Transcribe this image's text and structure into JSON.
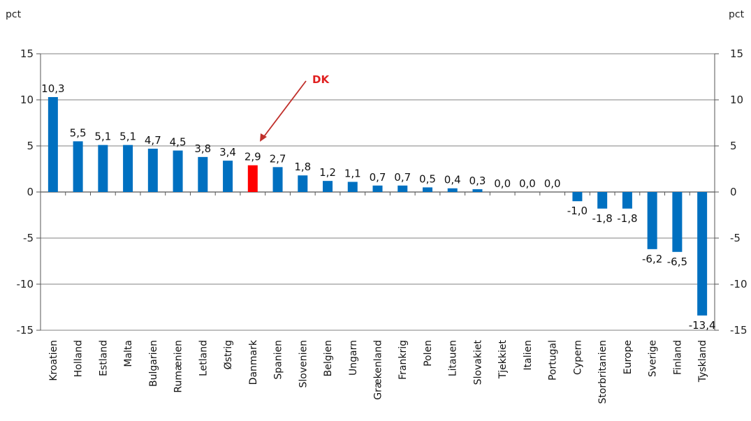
{
  "chart_data": {
    "type": "bar",
    "title": "",
    "xlabel": "",
    "ylabel": "",
    "unit_left": "pct",
    "unit_right": "pct",
    "ylim": [
      -15,
      15
    ],
    "yticks": [
      -15,
      -10,
      -5,
      0,
      5,
      10,
      15
    ],
    "grid": true,
    "categories": [
      "Kroatien",
      "Holland",
      "Estland",
      "Malta",
      "Bulgarien",
      "Rumænien",
      "Letland",
      "Østrig",
      "Danmark",
      "Spanien",
      "Slovenien",
      "Belgien",
      "Ungarn",
      "Grækenland",
      "Frankrig",
      "Polen",
      "Litauen",
      "Slovakiet",
      "Tjekkiet",
      "Italien",
      "Portugal",
      "Cypern",
      "Storbritanien",
      "Europe",
      "Sverige",
      "Finland",
      "Tyskland"
    ],
    "values": [
      10.3,
      5.5,
      5.1,
      5.1,
      4.7,
      4.5,
      3.8,
      3.4,
      2.9,
      2.7,
      1.8,
      1.2,
      1.1,
      0.7,
      0.7,
      0.5,
      0.4,
      0.3,
      0.0,
      0.0,
      0.0,
      -1.0,
      -1.8,
      -1.8,
      -6.2,
      -6.5,
      -13.4
    ],
    "value_labels": [
      "10,3",
      "5,5",
      "5,1",
      "5,1",
      "4,7",
      "4,5",
      "3,8",
      "3,4",
      "2,9",
      "2,7",
      "1,8",
      "1,2",
      "1,1",
      "0,7",
      "0,7",
      "0,5",
      "0,4",
      "0,3",
      "0,0",
      "0,0",
      "0,0",
      "-1,0",
      "-1,8",
      "-1,8",
      "-6,2",
      "-6,5",
      "-13,4"
    ],
    "highlight_category": "Danmark",
    "annotation": "DK",
    "colors": {
      "bar": "#0070c0",
      "highlight": "#ff0000",
      "annotation": "#e02020",
      "grid": "#9a9a9a"
    }
  }
}
